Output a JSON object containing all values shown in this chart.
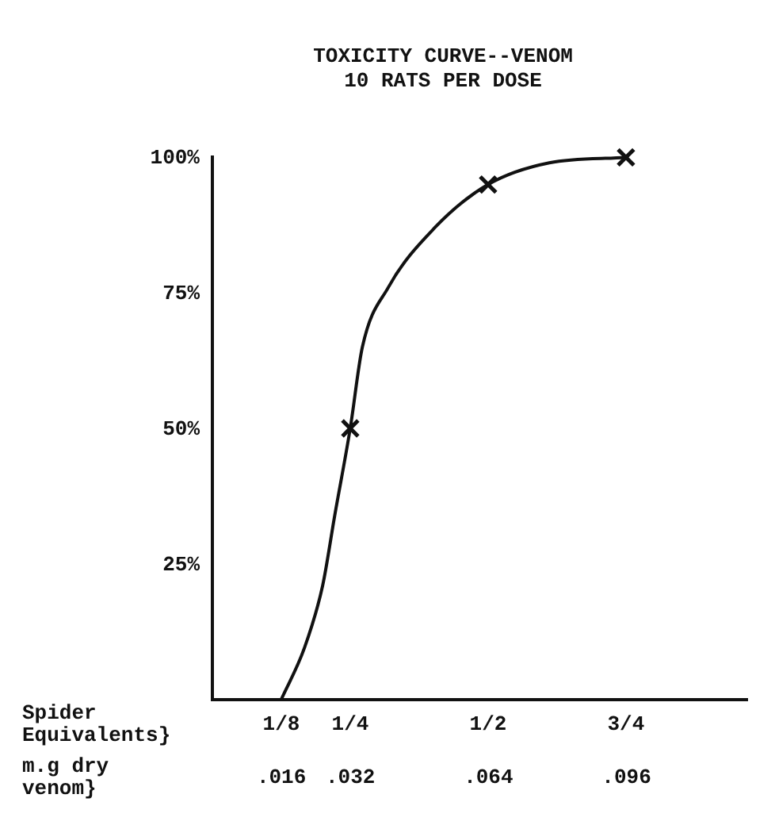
{
  "chart_data": {
    "type": "line",
    "title": "TOXICITY CURVE--VENOM",
    "subtitle": "10 RATS PER DOSE",
    "xlabel": "Spider Equivalents}",
    "x2label": "m.g dry venom}",
    "xlim": [
      0,
      0.97
    ],
    "xticks": [
      {
        "value": 0.125,
        "label": "1/8"
      },
      {
        "value": 0.25,
        "label": "1/4"
      },
      {
        "value": 0.5,
        "label": "1/2"
      },
      {
        "value": 0.75,
        "label": "3/4"
      }
    ],
    "x2lim": [
      0,
      0.124
    ],
    "x2ticks": [
      {
        "value": 0.016,
        "label": ".016"
      },
      {
        "value": 0.032,
        "label": ".032"
      },
      {
        "value": 0.064,
        "label": ".064"
      },
      {
        "value": 0.096,
        "label": ".096"
      }
    ],
    "ylim": [
      0,
      100
    ],
    "yticks": [
      {
        "value": 25,
        "label": "25%"
      },
      {
        "value": 50,
        "label": "50%"
      },
      {
        "value": 75,
        "label": "75%"
      },
      {
        "value": 100,
        "label": "100%"
      }
    ],
    "grid": false,
    "series": [
      {
        "type": "line",
        "color": "#111111",
        "marker": "none",
        "x": [
          0.125,
          0.167,
          0.2,
          0.222,
          0.25,
          0.272,
          0.319,
          0.403,
          0.5,
          0.611,
          0.75
        ],
        "values": [
          0,
          9.5,
          21,
          34,
          50,
          65,
          76,
          87,
          95,
          99,
          100
        ]
      },
      {
        "type": "scatter",
        "color": "#111111",
        "marker": "cross",
        "x": [
          0.25,
          0.5,
          0.75
        ],
        "values": [
          50,
          95,
          100
        ]
      }
    ]
  }
}
